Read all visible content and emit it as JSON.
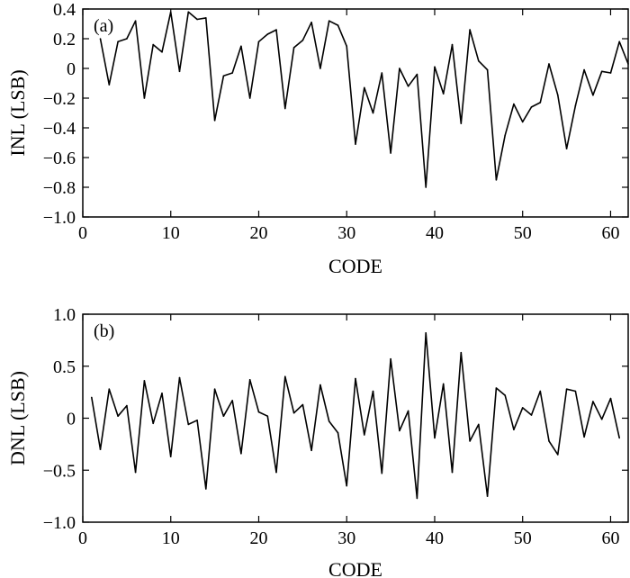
{
  "chart_data": [
    {
      "type": "line",
      "panel_label": "(a)",
      "xlabel": "CODE",
      "ylabel": "INL (LSB)",
      "xlim": [
        0,
        62
      ],
      "ylim": [
        -1.0,
        0.4
      ],
      "xticks": [
        0,
        10,
        20,
        30,
        40,
        50,
        60
      ],
      "xtick_labels": [
        "0",
        "10",
        "20",
        "30",
        "40",
        "50",
        "60"
      ],
      "yticks": [
        -1.0,
        -0.8,
        -0.6,
        -0.4,
        -0.2,
        0,
        0.2,
        0.4
      ],
      "ytick_labels": [
        "−1.0",
        "−0.8",
        "−0.6",
        "−0.4",
        "−0.2",
        "0",
        "0.2",
        "0.4"
      ],
      "grid": false,
      "series": [
        {
          "x": [
            2,
            3,
            4,
            5,
            6,
            7,
            8,
            9,
            10,
            11,
            12,
            13,
            14,
            15,
            16,
            17,
            18,
            19,
            20,
            21,
            22,
            23,
            24,
            25,
            26,
            27,
            28,
            29,
            30,
            31,
            32,
            33,
            34,
            35,
            36,
            37,
            38,
            39,
            40,
            41,
            42,
            43,
            44,
            45,
            46,
            47,
            48,
            49,
            50,
            51,
            52,
            53,
            54,
            55,
            56,
            57,
            58,
            59,
            60,
            61,
            62
          ],
          "values": [
            0.2,
            -0.11,
            0.18,
            0.2,
            0.32,
            -0.2,
            0.16,
            0.11,
            0.38,
            -0.02,
            0.38,
            0.33,
            0.34,
            -0.35,
            -0.05,
            -0.03,
            0.15,
            -0.2,
            0.18,
            0.23,
            0.26,
            -0.27,
            0.14,
            0.19,
            0.31,
            0.0,
            0.32,
            0.29,
            0.15,
            -0.51,
            -0.13,
            -0.3,
            -0.03,
            -0.57,
            0.0,
            -0.12,
            -0.04,
            -0.8,
            0.01,
            -0.17,
            0.16,
            -0.37,
            0.26,
            0.05,
            -0.01,
            -0.75,
            -0.45,
            -0.24,
            -0.36,
            -0.26,
            -0.23,
            0.03,
            -0.18,
            -0.54,
            -0.25,
            -0.01,
            -0.18,
            -0.02,
            -0.03,
            0.18,
            0.03
          ]
        }
      ]
    },
    {
      "type": "line",
      "panel_label": "(b)",
      "xlabel": "CODE",
      "ylabel": "DNL (LSB)",
      "xlim": [
        0,
        62
      ],
      "ylim": [
        -1.0,
        1.0
      ],
      "xticks": [
        0,
        10,
        20,
        30,
        40,
        50,
        60
      ],
      "xtick_labels": [
        "0",
        "10",
        "20",
        "30",
        "40",
        "50",
        "60"
      ],
      "yticks": [
        -1.0,
        -0.5,
        0,
        0.5,
        1.0
      ],
      "ytick_labels": [
        "−1.0",
        "−0.5",
        "0",
        "0.5",
        "1.0"
      ],
      "grid": false,
      "series": [
        {
          "x": [
            1,
            2,
            3,
            4,
            5,
            6,
            7,
            8,
            9,
            10,
            11,
            12,
            13,
            14,
            15,
            16,
            17,
            18,
            19,
            20,
            21,
            22,
            23,
            24,
            25,
            26,
            27,
            28,
            29,
            30,
            31,
            32,
            33,
            34,
            35,
            36,
            37,
            38,
            39,
            40,
            41,
            42,
            43,
            44,
            45,
            46,
            47,
            48,
            49,
            50,
            51,
            52,
            53,
            54,
            55,
            56,
            57,
            58,
            59,
            60,
            61
          ],
          "values": [
            0.2,
            -0.3,
            0.28,
            0.02,
            0.12,
            -0.52,
            0.36,
            -0.05,
            0.24,
            -0.37,
            0.39,
            -0.06,
            -0.02,
            -0.68,
            0.28,
            0.02,
            0.17,
            -0.34,
            0.37,
            0.06,
            0.02,
            -0.52,
            0.4,
            0.05,
            0.13,
            -0.31,
            0.32,
            -0.03,
            -0.14,
            -0.65,
            0.38,
            -0.16,
            0.26,
            -0.53,
            0.57,
            -0.12,
            0.07,
            -0.77,
            0.82,
            -0.19,
            0.33,
            -0.52,
            0.63,
            -0.22,
            -0.06,
            -0.75,
            0.29,
            0.22,
            -0.11,
            0.1,
            0.03,
            0.26,
            -0.22,
            -0.35,
            0.28,
            0.26,
            -0.18,
            0.16,
            -0.01,
            0.19,
            -0.19
          ]
        }
      ]
    }
  ]
}
